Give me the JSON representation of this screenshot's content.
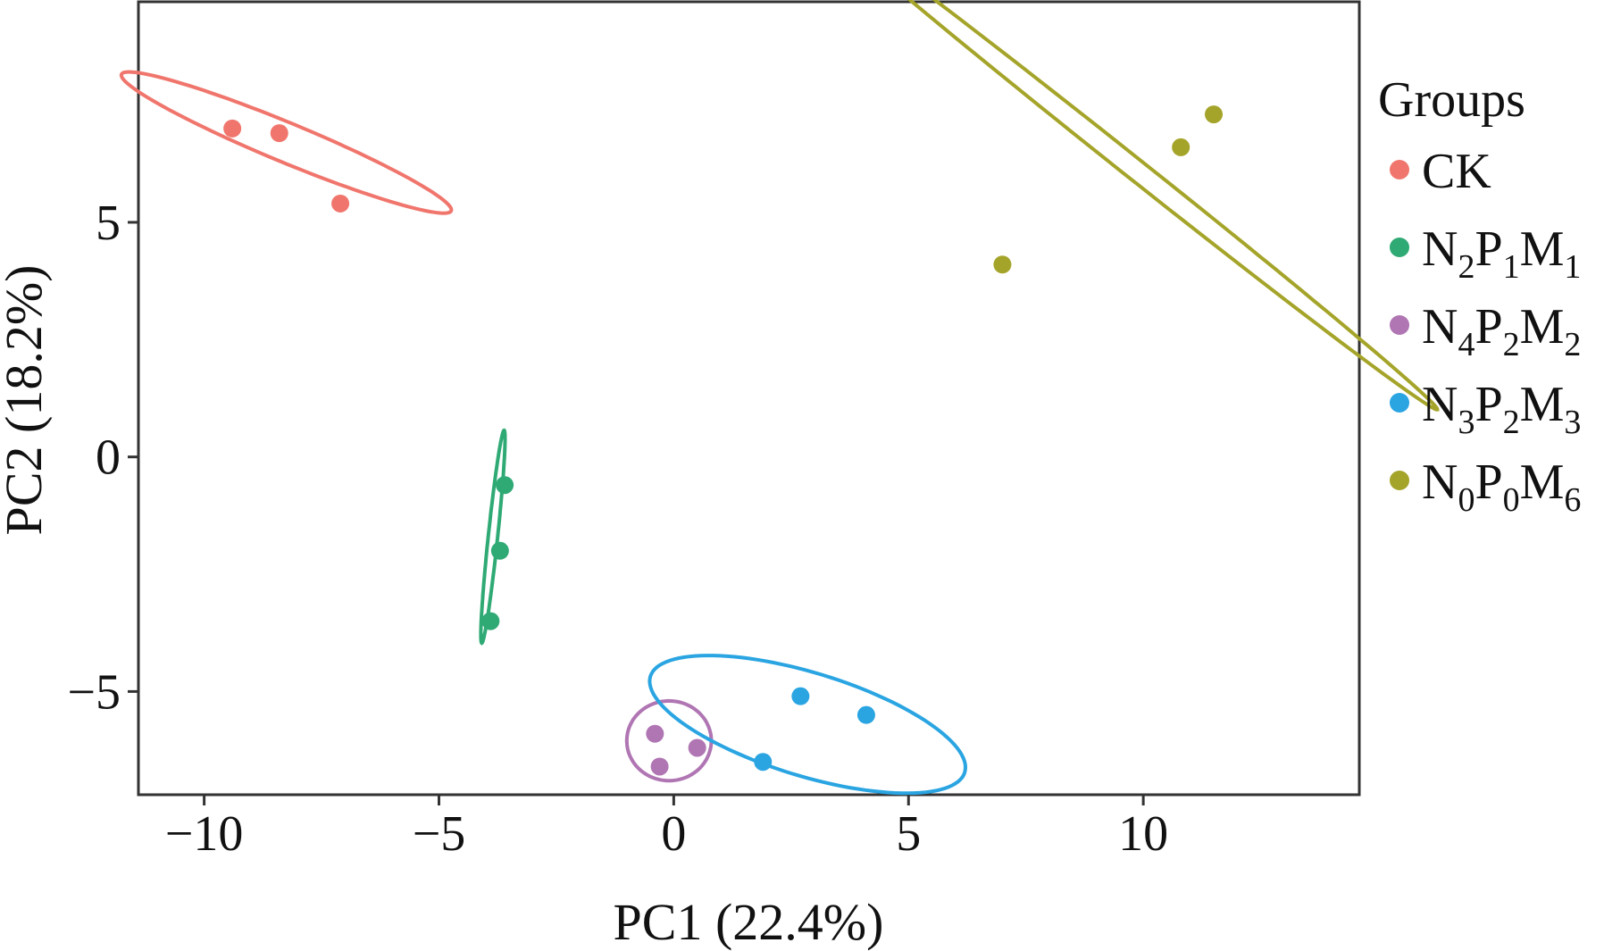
{
  "chart_data": {
    "type": "scatter",
    "xlabel": "PC1 (22.4%)",
    "ylabel": "PC2 (18.2%)",
    "xlim": [
      -11.4,
      14.6
    ],
    "ylim": [
      -7.2,
      9.7
    ],
    "xticks": [
      -10,
      -5,
      0,
      5,
      10
    ],
    "yticks": [
      -5,
      0,
      5
    ],
    "xtick_labels": [
      "−10",
      "−5",
      "0",
      "5",
      "10"
    ],
    "ytick_labels": [
      "−5",
      "0",
      "5"
    ],
    "grid": false,
    "legend_title": "Groups",
    "legend_position": "right",
    "series": [
      {
        "name": "CK",
        "legend": [
          {
            "t": "CK",
            "sub": false
          }
        ],
        "color": "#F0766D",
        "points": [
          [
            -9.4,
            7.0
          ],
          [
            -8.4,
            6.9
          ],
          [
            -7.1,
            5.4
          ]
        ],
        "ellipse": {
          "cx": -8.25,
          "cy": 6.7,
          "rx": 3.8,
          "ry": 0.42,
          "angle_deg": -22.5
        }
      },
      {
        "name": "N2P1M1",
        "legend": [
          {
            "t": "N",
            "sub": false
          },
          {
            "t": "2",
            "sub": true
          },
          {
            "t": "P",
            "sub": false
          },
          {
            "t": "1",
            "sub": true
          },
          {
            "t": "M",
            "sub": false
          },
          {
            "t": "1",
            "sub": true
          }
        ],
        "color": "#2FAA75",
        "points": [
          [
            -3.6,
            -0.6
          ],
          [
            -3.7,
            -2.0
          ],
          [
            -3.9,
            -3.5
          ]
        ],
        "ellipse": {
          "cx": -3.85,
          "cy": -1.7,
          "rx": 2.28,
          "ry": 0.1,
          "angle_deg": 84
        }
      },
      {
        "name": "N4P2M2",
        "legend": [
          {
            "t": "N",
            "sub": false
          },
          {
            "t": "4",
            "sub": true
          },
          {
            "t": "P",
            "sub": false
          },
          {
            "t": "2",
            "sub": true
          },
          {
            "t": "M",
            "sub": false
          },
          {
            "t": "2",
            "sub": true
          }
        ],
        "color": "#B075B3",
        "points": [
          [
            -0.4,
            -5.9
          ],
          [
            0.5,
            -6.2
          ],
          [
            -0.3,
            -6.6
          ]
        ],
        "ellipse": {
          "cx": -0.1,
          "cy": -6.05,
          "rx": 0.9,
          "ry": 0.85,
          "angle_deg": 0
        }
      },
      {
        "name": "N3P2M3",
        "legend": [
          {
            "t": "N",
            "sub": false
          },
          {
            "t": "3",
            "sub": true
          },
          {
            "t": "P",
            "sub": false
          },
          {
            "t": "2",
            "sub": true
          },
          {
            "t": "M",
            "sub": false
          },
          {
            "t": "3",
            "sub": true
          }
        ],
        "color": "#2AA5E2",
        "points": [
          [
            2.7,
            -5.1
          ],
          [
            4.1,
            -5.5
          ],
          [
            1.9,
            -6.5
          ]
        ],
        "ellipse": {
          "cx": 2.85,
          "cy": -5.7,
          "rx": 3.5,
          "ry": 1.1,
          "angle_deg": -17
        }
      },
      {
        "name": "N0P0M6",
        "legend": [
          {
            "t": "N",
            "sub": false
          },
          {
            "t": "0",
            "sub": true
          },
          {
            "t": "P",
            "sub": false
          },
          {
            "t": "0",
            "sub": true
          },
          {
            "t": "M",
            "sub": false
          },
          {
            "t": "6",
            "sub": true
          }
        ],
        "color": "#A5A42A",
        "points": [
          [
            11.5,
            7.3
          ],
          [
            10.8,
            6.6
          ],
          [
            7.0,
            4.1
          ]
        ],
        "ellipse": {
          "cx": 9.65,
          "cy": 6.27,
          "rx": 8.45,
          "ry": 0.22,
          "angle_deg": -38.5
        }
      }
    ]
  }
}
